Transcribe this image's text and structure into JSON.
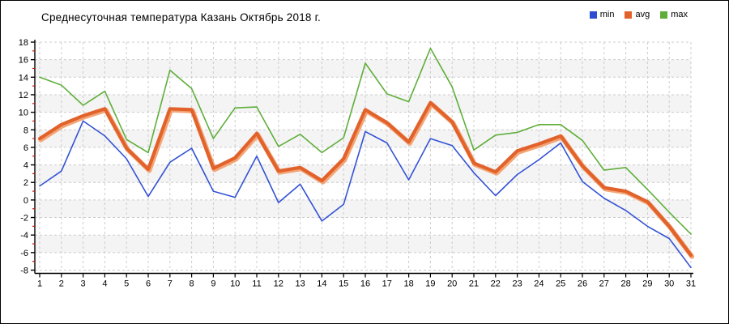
{
  "title": "Среднесуточная температура Казань  Октябрь 2018 г.",
  "legend": {
    "position": "top-right",
    "items": [
      {
        "label": "min",
        "color": "#2e4cd2"
      },
      {
        "label": "avg",
        "color": "#e2622b"
      },
      {
        "label": "max",
        "color": "#5fae3a"
      }
    ]
  },
  "chart_data": {
    "type": "line",
    "title": "Среднесуточная температура Казань  Октябрь 2018 г.",
    "xlabel": "",
    "ylabel": "",
    "x": [
      1,
      2,
      3,
      4,
      5,
      6,
      7,
      8,
      9,
      10,
      11,
      12,
      13,
      14,
      15,
      16,
      17,
      18,
      19,
      20,
      21,
      22,
      23,
      24,
      25,
      26,
      27,
      28,
      29,
      30,
      31
    ],
    "series": [
      {
        "name": "min",
        "color": "#3352d4",
        "width": 1.6,
        "values": [
          1.6,
          3.3,
          9.0,
          7.3,
          4.7,
          0.4,
          4.3,
          5.9,
          1.0,
          0.3,
          5.0,
          -0.3,
          1.8,
          -2.4,
          -0.5,
          7.8,
          6.5,
          2.3,
          7.0,
          6.2,
          3.1,
          0.5,
          2.9,
          4.6,
          6.5,
          2.1,
          0.2,
          -1.2,
          -3.0,
          -4.4,
          -7.7
        ]
      },
      {
        "name": "avg",
        "color": "#e2622b",
        "width": 4.2,
        "halo": "#f3a576",
        "values": [
          7.0,
          8.6,
          9.6,
          10.4,
          5.9,
          3.5,
          10.4,
          10.3,
          3.6,
          4.8,
          7.6,
          3.3,
          3.7,
          2.2,
          4.7,
          10.3,
          8.8,
          6.6,
          11.1,
          8.9,
          4.2,
          3.2,
          5.6,
          6.4,
          7.3,
          3.9,
          1.4,
          1.0,
          -0.2,
          -3.0,
          -6.3
        ]
      },
      {
        "name": "max",
        "color": "#5fae3a",
        "width": 1.6,
        "values": [
          14.0,
          13.1,
          10.8,
          12.4,
          6.9,
          5.4,
          14.8,
          12.7,
          7.0,
          10.5,
          10.6,
          6.1,
          7.5,
          5.4,
          7.1,
          15.6,
          12.1,
          11.2,
          17.3,
          12.9,
          5.7,
          7.4,
          7.7,
          8.6,
          8.6,
          6.8,
          3.4,
          3.7,
          1.2,
          -1.4,
          -3.9
        ]
      }
    ],
    "ylim": [
      -8,
      18
    ],
    "y_ticks": [
      -8,
      -6,
      -4,
      -2,
      0,
      2,
      4,
      6,
      8,
      10,
      12,
      14,
      16,
      18
    ],
    "grid": true,
    "band_color": "#f4f4f4",
    "grid_color": "#cccccc",
    "axis_color": "#000000",
    "minor_tick_color": "#cc1100",
    "legend_position": "top-right"
  }
}
